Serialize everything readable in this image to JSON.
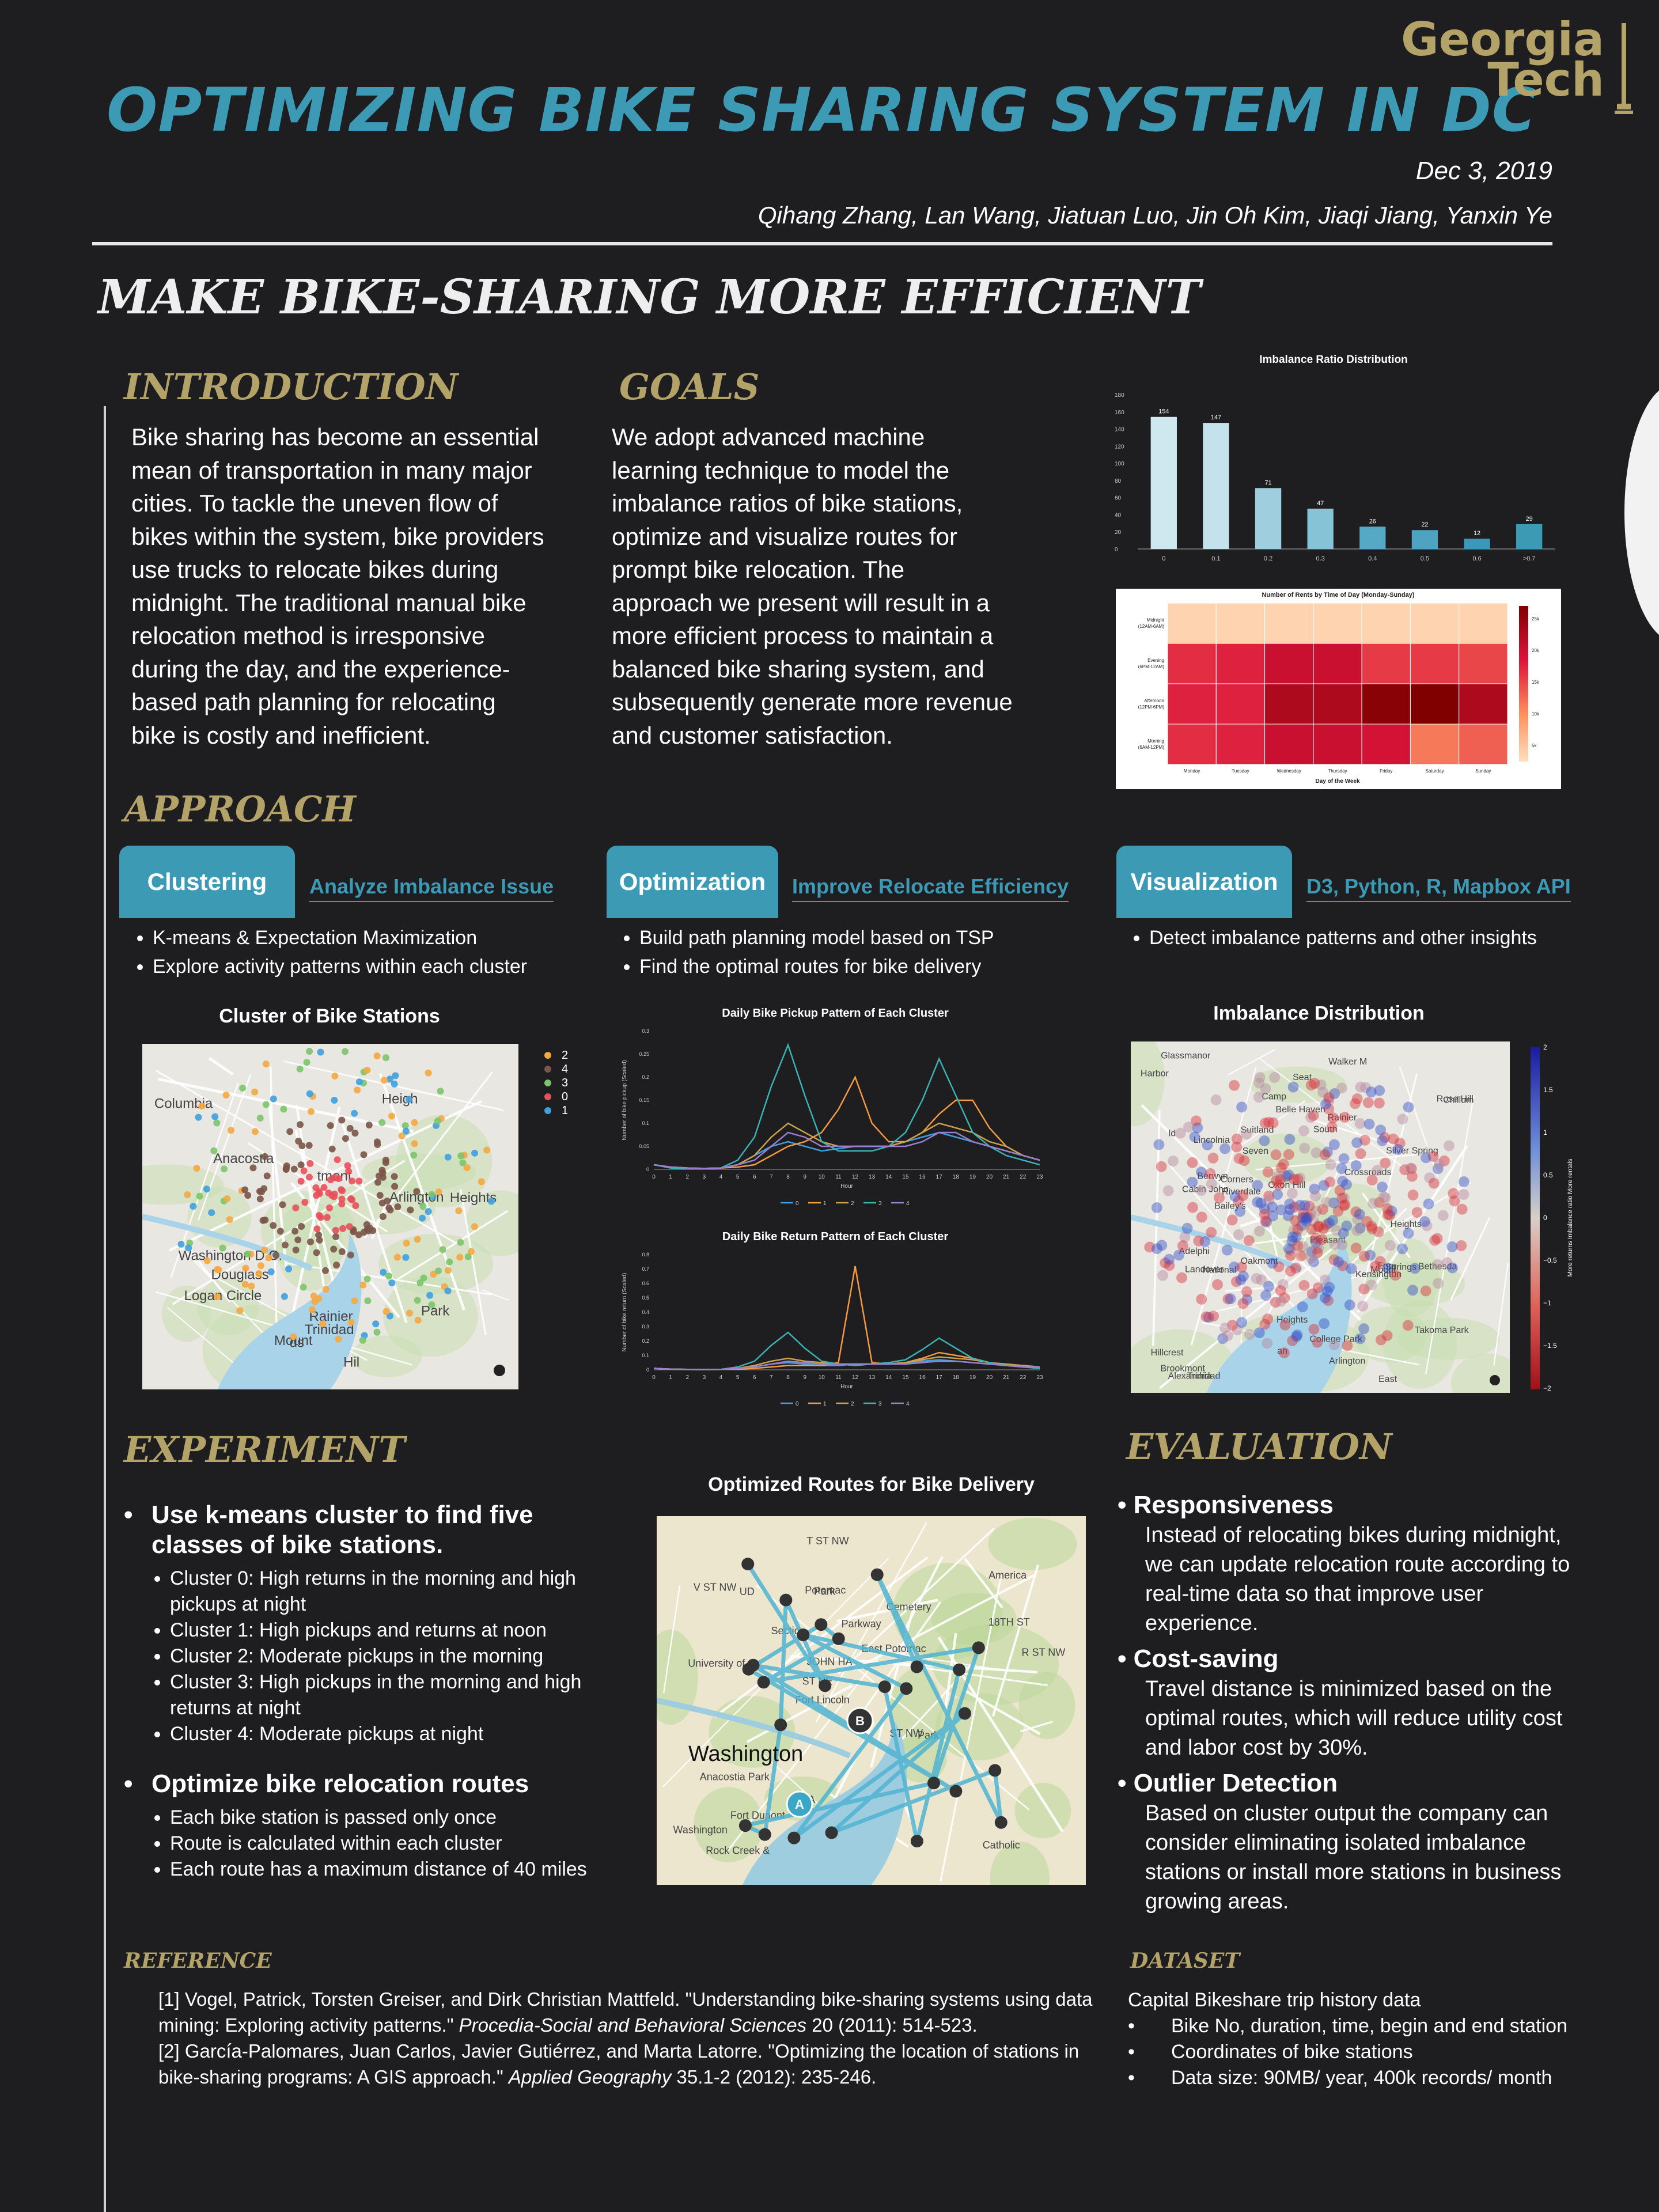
{
  "header": {
    "title": "OPTIMIZING BIKE SHARING SYSTEM IN DC",
    "logo_line1": "Georgia",
    "logo_line2": "Tech",
    "date": "Dec 3, 2019",
    "authors": "Qihang Zhang, Lan Wang, Jiatuan Luo,  Jin Oh Kim,  Jiaqi Jiang, Yanxin Ye"
  },
  "headline": "MAKE BIKE-SHARING MORE EFFICIENT",
  "intro": {
    "heading": "INTRODUCTION",
    "lines": [
      "Bike sharing has become an essential",
      "mean of transportation in many major",
      "cities. To tackle the uneven flow of",
      "bikes within the system, bike providers",
      "use trucks to relocate bikes during",
      "midnight. The traditional manual bike",
      "relocation method is irresponsive",
      "during the day, and the experience-",
      "based path planning for relocating",
      "bike is costly and inefficient."
    ]
  },
  "goals": {
    "heading": "GOALS",
    "lines": [
      "We adopt advanced machine",
      "learning technique to model the",
      "imbalance ratios of bike stations,",
      "optimize and visualize routes for",
      "prompt bike relocation. The",
      "approach we present will result in a",
      "more efficient process to maintain a",
      "balanced bike sharing system, and",
      "subsequently generate more revenue",
      "and customer satisfaction."
    ]
  },
  "approach": {
    "heading": "APPROACH",
    "clustering": {
      "tab": "Clustering",
      "sub": "Analyze Imbalance Issue",
      "bullets": [
        "K-means & Expectation Maximization",
        "Explore activity patterns within each cluster"
      ]
    },
    "optimization": {
      "tab": "Optimization",
      "sub": "Improve Relocate Efficiency",
      "bullets": [
        "Build path planning model based on TSP",
        "Find the optimal routes for bike delivery"
      ]
    },
    "visualization": {
      "tab": "Visualization",
      "sub": "D3, Python, R, Mapbox API",
      "bullets": [
        "Detect  imbalance patterns and other insights"
      ]
    }
  },
  "cluster_map": {
    "title": "Cluster of Bike Stations",
    "legend": [
      {
        "label": "2",
        "color": "#f5a742"
      },
      {
        "label": "4",
        "color": "#7a5548"
      },
      {
        "label": "3",
        "color": "#7cc46a"
      },
      {
        "label": "0",
        "color": "#e8505b"
      },
      {
        "label": "1",
        "color": "#3fa0e0"
      }
    ],
    "places": [
      "Mount",
      "Rainier",
      "tmont",
      "Columbia",
      "Heights",
      "Logan Circle",
      "Trinidad",
      "Washington D.C.",
      "Arlington",
      "Anacostia",
      "Douglass",
      "Park",
      "ds",
      "Hil",
      "Heigh"
    ]
  },
  "imbalance_map": {
    "title": "Imbalance Distribution",
    "places": [
      "South",
      "Kensington",
      "Oakmont",
      "Adelphi",
      "Berwyn",
      "Heights",
      "Silver Spring",
      "Takoma Park",
      "College Park",
      "Bethesda",
      "Cabin John",
      "Chillum",
      "East",
      "Riverdale",
      "Brookmont",
      "Mount",
      "Rainier",
      "Landover",
      "Trinidad",
      "Seat",
      "Pleasant",
      "Seven",
      "Corners",
      "Walker M",
      "Arlington",
      "Bailey's",
      "Crossroads",
      "Suitland",
      "Fore",
      "Hillcrest",
      "Heights",
      "Lincolnia",
      "Glassmanor",
      "Camp",
      "Springs",
      "Alexandria",
      "Oxon Hill",
      "Rose Hill",
      "Belle Haven",
      "National",
      "Harbor",
      "an",
      "ld"
    ],
    "colorbar_ticks": [
      "2",
      "1.5",
      "1",
      "0.5",
      "0",
      "−0.5",
      "−1",
      "−1.5",
      "−2"
    ],
    "colorbar_label": "More returns   Imbalance ratio   More rentals"
  },
  "route_map": {
    "title": "Optimized Routes for Bike Delivery",
    "places": [
      "Catholic",
      "University of",
      "America",
      "Fort Lincoln",
      "Cemetery",
      "Rock Creek &",
      "Potomac",
      "Parkway",
      "Anacostia Park",
      "Section",
      "Washington",
      "Fort Dupont",
      "Park",
      "East Potomac",
      "Park",
      "V ST NW",
      "T ST NW",
      "R ST NW",
      "ST NW",
      "18TH ST",
      "ST NE",
      "LA",
      "JOHN HA",
      "UD"
    ],
    "markers": [
      "A",
      "B"
    ]
  },
  "chart_data": [
    {
      "type": "bar",
      "title": "Imbalance Ratio Distribution",
      "categories": [
        "0",
        "0.1",
        "0.2",
        "0.3",
        "0.4",
        "0.5",
        "0.6",
        ">0.7"
      ],
      "values": [
        154,
        147,
        71,
        47,
        26,
        22,
        12,
        29
      ],
      "ylim": [
        0,
        180
      ],
      "yticks": [
        "0",
        "20",
        "40",
        "60",
        "80",
        "100",
        "120",
        "140",
        "160",
        "180"
      ],
      "xlabel": "",
      "ylabel": ""
    },
    {
      "type": "heatmap",
      "title": "Number of Rents by Time of Day (Monday-Sunday)",
      "xlabel": "Day of the Week",
      "x": [
        "Monday",
        "Tuesday",
        "Wednesday",
        "Thursday",
        "Friday",
        "Saturday",
        "Sunday"
      ],
      "y": [
        "Midnight (12AM-6AM)",
        "Evening (6PM-12AM)",
        "Afternoon (12PM-6PM)",
        "Morning (6AM-12PM)"
      ],
      "values": [
        [
          1.5,
          1.5,
          1.5,
          1.5,
          1.5,
          1.5,
          1.5
        ],
        [
          18,
          19,
          22,
          22,
          17,
          17,
          16
        ],
        [
          19,
          19,
          25,
          25,
          29,
          30,
          25
        ],
        [
          18,
          19,
          22,
          22,
          21,
          12,
          14
        ]
      ],
      "colorbar_ticks": [
        "25k",
        "20k",
        "15k",
        "10k",
        "5k"
      ]
    },
    {
      "type": "line",
      "title": "Daily Bike Pickup Pattern of Each Cluster",
      "xlabel": "Hour",
      "ylabel": "Number of bike pickup (Scaled)",
      "x": [
        0,
        1,
        2,
        3,
        4,
        5,
        6,
        7,
        8,
        9,
        10,
        11,
        12,
        13,
        14,
        15,
        16,
        17,
        18,
        19,
        20,
        21,
        22,
        23
      ],
      "ylim": [
        0,
        0.3
      ],
      "yticks": [
        "0",
        "0.05",
        "0.1",
        "0.15",
        "0.2",
        "0.25",
        "0.3"
      ],
      "series": [
        {
          "name": "0",
          "color": "#3fa0e0",
          "values": [
            0.01,
            0.005,
            0.003,
            0.002,
            0.003,
            0.01,
            0.03,
            0.05,
            0.06,
            0.05,
            0.04,
            0.045,
            0.05,
            0.05,
            0.05,
            0.06,
            0.07,
            0.08,
            0.07,
            0.06,
            0.05,
            0.04,
            0.03,
            0.02
          ]
        },
        {
          "name": "1",
          "color": "#f59a42",
          "values": [
            0.01,
            0.005,
            0.003,
            0.002,
            0.003,
            0.005,
            0.01,
            0.03,
            0.05,
            0.06,
            0.08,
            0.13,
            0.2,
            0.1,
            0.06,
            0.06,
            0.08,
            0.12,
            0.15,
            0.15,
            0.09,
            0.05,
            0.03,
            0.02
          ]
        },
        {
          "name": "2",
          "color": "#c9a24a",
          "values": [
            0.01,
            0.005,
            0.003,
            0.002,
            0.003,
            0.01,
            0.03,
            0.07,
            0.1,
            0.08,
            0.06,
            0.05,
            0.05,
            0.05,
            0.05,
            0.06,
            0.08,
            0.1,
            0.09,
            0.08,
            0.06,
            0.05,
            0.03,
            0.02
          ]
        },
        {
          "name": "3",
          "color": "#3bb3b3",
          "values": [
            0.01,
            0.003,
            0.002,
            0.002,
            0.003,
            0.02,
            0.07,
            0.18,
            0.27,
            0.16,
            0.06,
            0.04,
            0.04,
            0.04,
            0.05,
            0.08,
            0.15,
            0.24,
            0.16,
            0.08,
            0.05,
            0.03,
            0.02,
            0.01
          ]
        },
        {
          "name": "4",
          "color": "#9a7fcf",
          "values": [
            0.01,
            0.005,
            0.003,
            0.002,
            0.003,
            0.01,
            0.02,
            0.05,
            0.08,
            0.07,
            0.05,
            0.05,
            0.05,
            0.05,
            0.05,
            0.05,
            0.06,
            0.08,
            0.08,
            0.06,
            0.05,
            0.04,
            0.03,
            0.02
          ]
        }
      ]
    },
    {
      "type": "line",
      "title": "Daily Bike Return Pattern of Each Cluster",
      "xlabel": "Hour",
      "ylabel": "Number of bike return (Scaled)",
      "x": [
        0,
        1,
        2,
        3,
        4,
        5,
        6,
        7,
        8,
        9,
        10,
        11,
        12,
        13,
        14,
        15,
        16,
        17,
        18,
        19,
        20,
        21,
        22,
        23
      ],
      "ylim": [
        0,
        0.8
      ],
      "yticks": [
        "0",
        "0.1",
        "0.2",
        "0.3",
        "0.4",
        "0.5",
        "0.6",
        "0.7",
        "0.8"
      ],
      "series": [
        {
          "name": "0",
          "color": "#3fa0e0",
          "values": [
            0.01,
            0.005,
            0.003,
            0.002,
            0.003,
            0.01,
            0.02,
            0.04,
            0.05,
            0.04,
            0.03,
            0.03,
            0.04,
            0.04,
            0.04,
            0.05,
            0.06,
            0.07,
            0.06,
            0.05,
            0.04,
            0.03,
            0.02,
            0.01
          ]
        },
        {
          "name": "1",
          "color": "#f59a42",
          "values": [
            0.01,
            0.005,
            0.003,
            0.002,
            0.003,
            0.005,
            0.01,
            0.02,
            0.03,
            0.03,
            0.03,
            0.05,
            0.72,
            0.05,
            0.04,
            0.05,
            0.08,
            0.12,
            0.1,
            0.08,
            0.05,
            0.03,
            0.02,
            0.01
          ]
        },
        {
          "name": "2",
          "color": "#c9a24a",
          "values": [
            0.01,
            0.005,
            0.003,
            0.002,
            0.003,
            0.01,
            0.03,
            0.06,
            0.08,
            0.06,
            0.05,
            0.04,
            0.04,
            0.04,
            0.04,
            0.05,
            0.07,
            0.09,
            0.08,
            0.07,
            0.05,
            0.04,
            0.03,
            0.02
          ]
        },
        {
          "name": "3",
          "color": "#3bb3b3",
          "values": [
            0.01,
            0.003,
            0.002,
            0.002,
            0.003,
            0.02,
            0.06,
            0.17,
            0.26,
            0.15,
            0.06,
            0.04,
            0.03,
            0.04,
            0.05,
            0.07,
            0.14,
            0.22,
            0.15,
            0.08,
            0.05,
            0.03,
            0.02,
            0.01
          ]
        },
        {
          "name": "4",
          "color": "#9a7fcf",
          "values": [
            0.01,
            0.005,
            0.003,
            0.002,
            0.003,
            0.01,
            0.02,
            0.04,
            0.06,
            0.05,
            0.04,
            0.04,
            0.04,
            0.04,
            0.04,
            0.04,
            0.05,
            0.06,
            0.06,
            0.05,
            0.04,
            0.03,
            0.02,
            0.02
          ]
        }
      ]
    }
  ],
  "experiment": {
    "heading": "EXPERIMENT",
    "h1": "Use k-means cluster to find five classes of bike stations.",
    "clusters": [
      "Cluster 0: High returns in the morning and high pickups at night",
      "Cluster 1: High pickups and returns at noon",
      "Cluster 2: Moderate pickups in the morning",
      "Cluster 3: High pickups in the morning and high returns at night",
      "Cluster 4: Moderate pickups at night"
    ],
    "h2": "Optimize bike relocation routes",
    "rules": [
      "Each bike station is passed only once",
      "Route is calculated within each cluster",
      "Each route has a maximum distance of 40 miles"
    ]
  },
  "evaluation": {
    "heading": "EVALUATION",
    "items": [
      {
        "title": "Responsiveness",
        "text": "Instead of relocating bikes during midnight, we can update relocation route according to real-time data so that improve user experience."
      },
      {
        "title": "Cost-saving",
        "text": "Travel distance is minimized based on the optimal routes, which will reduce utility cost and labor cost by 30%."
      },
      {
        "title": "Outlier Detection",
        "text": "Based on cluster output the company can consider eliminating isolated imbalance stations or install more stations in business growing areas."
      }
    ]
  },
  "reference": {
    "heading": "REFERENCE",
    "r1_a": "[1]  Vogel, Patrick, Torsten Greiser, and Dirk Christian Mattfeld. \"Understanding bike-sharing systems using data mining: Exploring activity patterns.\" ",
    "r1_i": "Procedia-Social and Behavioral Sciences",
    "r1_b": " 20 (2011): 514-523.",
    "r2_a": "[2] García-Palomares, Juan Carlos, Javier Gutiérrez, and Marta Latorre. \"Optimizing the location of stations in bike-sharing programs: A GIS approach.\" ",
    "r2_i": "Applied Geography",
    "r2_b": " 35.1-2 (2012): 235-246."
  },
  "dataset": {
    "heading": "DATASET",
    "intro": "Capital Bikeshare trip history data",
    "bullets": [
      "Bike No, duration, time, begin and end station",
      "Coordinates of bike stations",
      "Data size: 90MB/ year, 400k records/ month"
    ]
  }
}
